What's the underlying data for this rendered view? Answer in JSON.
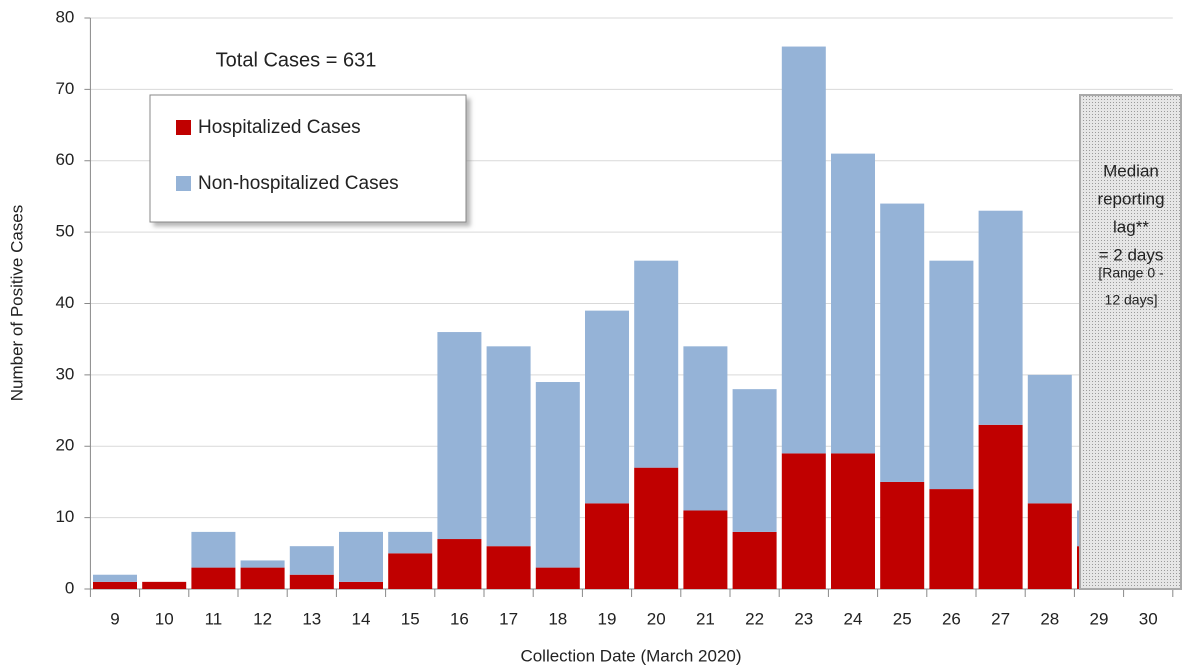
{
  "chart_data": {
    "type": "stacked-bar",
    "annotation": "Total Cases = 631",
    "x_label": "Collection Date (March 2020)",
    "y_label": "Number of Positive Cases",
    "categories": [
      "9",
      "10",
      "11",
      "12",
      "13",
      "14",
      "15",
      "16",
      "17",
      "18",
      "19",
      "20",
      "21",
      "22",
      "23",
      "24",
      "25",
      "26",
      "27",
      "28",
      "29",
      "30"
    ],
    "series": [
      {
        "name": "Hospitalized Cases",
        "color": "#c00000",
        "values": [
          1,
          1,
          3,
          3,
          2,
          1,
          5,
          7,
          6,
          3,
          12,
          17,
          11,
          8,
          19,
          19,
          15,
          14,
          23,
          12,
          6,
          null
        ]
      },
      {
        "name": "Non-hospitalized Cases",
        "color": "#95b3d7",
        "values": [
          1,
          0,
          5,
          1,
          4,
          7,
          3,
          29,
          28,
          26,
          27,
          29,
          23,
          20,
          57,
          42,
          39,
          32,
          30,
          18,
          5,
          null
        ]
      }
    ],
    "ylim": [
      0,
      80
    ],
    "yticks": [
      0,
      10,
      20,
      30,
      40,
      50,
      60,
      70,
      80
    ],
    "grid": true,
    "lag_note": [
      "Median",
      "reporting",
      "lag**",
      "= 2 days"
    ],
    "range_note": [
      "[Range 0 -",
      "12 days]"
    ]
  }
}
